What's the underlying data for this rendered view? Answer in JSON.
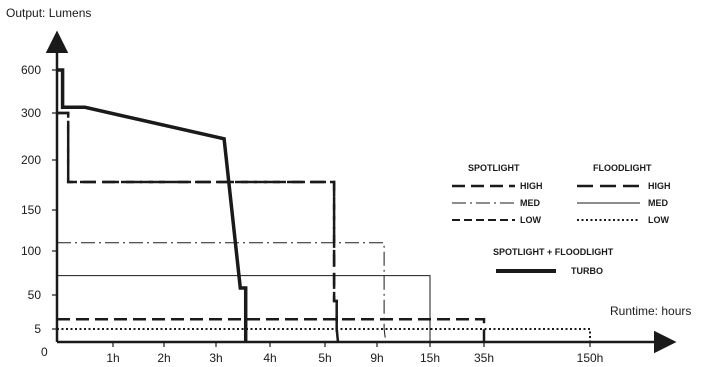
{
  "chart_data": {
    "type": "line",
    "title": "",
    "ylabel": "Output: Lumens",
    "xlabel": "Runtime: hours",
    "origin_label": "0",
    "y_ticks": [
      "5",
      "50",
      "100",
      "150",
      "200",
      "300",
      "600"
    ],
    "x_ticks": [
      "1h",
      "2h",
      "3h",
      "4h",
      "5h",
      "9h",
      "15h",
      "35h",
      "150h"
    ],
    "x_scale": "non-linear (tick positions as printed)",
    "y_scale": "non-linear (tick positions as printed)",
    "grid": false,
    "legend_position": "right",
    "legend": {
      "spotlight_header": "SPOTLIGHT",
      "floodlight_header": "FLOODLIGHT",
      "combined_header": "SPOTLIGHT + FLOODLIGHT",
      "high": "HIGH",
      "med": "MED",
      "low": "LOW",
      "turbo": "TURBO"
    },
    "series": [
      {
        "name": "SPOTLIGHT HIGH",
        "style": "dashed",
        "points": [
          [
            0,
            300
          ],
          [
            0.2,
            300
          ],
          [
            0.2,
            178
          ],
          [
            5.7,
            178
          ],
          [
            5.7,
            42
          ],
          [
            5.9,
            42
          ],
          [
            5.9,
            5
          ],
          [
            6.0,
            0
          ]
        ]
      },
      {
        "name": "SPOTLIGHT MED",
        "style": "dash-dot",
        "points": [
          [
            0,
            110
          ],
          [
            9.8,
            110
          ],
          [
            9.8,
            5
          ],
          [
            10.0,
            0
          ]
        ]
      },
      {
        "name": "SPOTLIGHT LOW",
        "style": "dashed",
        "points": [
          [
            0,
            18
          ],
          [
            35,
            18
          ],
          [
            35,
            0
          ]
        ]
      },
      {
        "name": "FLOODLIGHT HIGH",
        "style": "long-dashed",
        "points": [
          [
            0,
            300
          ],
          [
            0.2,
            300
          ],
          [
            0.2,
            178
          ],
          [
            5.7,
            178
          ],
          [
            5.7,
            42
          ],
          [
            5.9,
            42
          ],
          [
            5.9,
            5
          ],
          [
            6.0,
            0
          ]
        ]
      },
      {
        "name": "FLOODLIGHT MED",
        "style": "solid",
        "points": [
          [
            0,
            72
          ],
          [
            15,
            72
          ],
          [
            15,
            0
          ]
        ]
      },
      {
        "name": "FLOODLIGHT LOW",
        "style": "dotted",
        "points": [
          [
            0,
            5
          ],
          [
            150,
            5
          ],
          [
            150,
            0
          ]
        ]
      },
      {
        "name": "TURBO",
        "style": "thick-solid",
        "points": [
          [
            0,
            600
          ],
          [
            0.1,
            600
          ],
          [
            0.1,
            340
          ],
          [
            0.5,
            340
          ],
          [
            3.15,
            245
          ],
          [
            3.45,
            58
          ],
          [
            3.55,
            58
          ],
          [
            3.55,
            0
          ]
        ]
      }
    ]
  }
}
